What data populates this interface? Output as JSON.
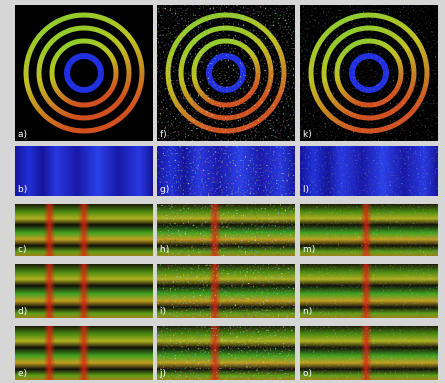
{
  "columns": [
    [
      "a)",
      "b)",
      "c)",
      "d)",
      "e)"
    ],
    [
      "f)",
      "g)",
      "h)",
      "i)",
      "j)"
    ],
    [
      "k)",
      "l)",
      "m)",
      "n)",
      "o)"
    ]
  ]
}
